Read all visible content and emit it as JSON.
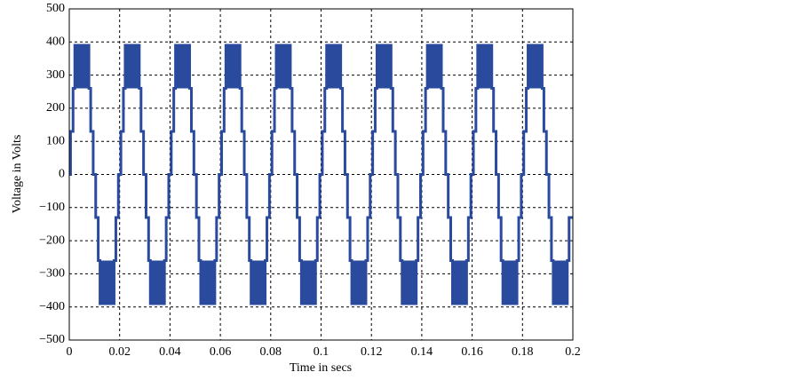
{
  "chart_data": {
    "type": "step-line",
    "x_label": "Time in secs",
    "y_label": "Voltage in Volts",
    "xlim": [
      0,
      0.2
    ],
    "ylim": [
      -500,
      500
    ],
    "xticks": [
      0,
      0.02,
      0.04,
      0.06,
      0.08,
      0.1,
      0.12,
      0.14,
      0.16,
      0.18,
      0.2
    ],
    "yticks": [
      {
        "value": -500,
        "label": "−500"
      },
      {
        "value": -400,
        "label": "−400"
      },
      {
        "value": -300,
        "label": "−300"
      },
      {
        "value": -200,
        "label": "−200"
      },
      {
        "value": -100,
        "label": "−100"
      },
      0,
      100,
      200,
      300,
      400,
      500
    ],
    "grid": true,
    "series": [
      {
        "color": "#2a4a9e",
        "x": [
          0,
          0.0005,
          0.0015,
          0.0022,
          0.0078,
          0.0085,
          0.0095,
          0.0105,
          0.0115,
          0.0122,
          0.0178,
          0.0185,
          0.0195,
          0.0205,
          0.0215,
          0.0222,
          0.0278,
          0.0285,
          0.0295,
          0.0305,
          0.0315,
          0.0322,
          0.0378,
          0.0385,
          0.0395,
          0.0405,
          0.0415,
          0.0422,
          0.0478,
          0.0485,
          0.0495,
          0.0505,
          0.0515,
          0.0522,
          0.0578,
          0.0585,
          0.0595,
          0.0605,
          0.0615,
          0.0622,
          0.0678,
          0.0685,
          0.0695,
          0.0705,
          0.0715,
          0.0722,
          0.0778,
          0.0785,
          0.0795,
          0.0805,
          0.0815,
          0.0822,
          0.0878,
          0.0885,
          0.0895,
          0.0905,
          0.0915,
          0.0922,
          0.0978,
          0.0985,
          0.0995,
          0.1005,
          0.1015,
          0.1022,
          0.1078,
          0.1085,
          0.1095,
          0.1105,
          0.1115,
          0.1122,
          0.1178,
          0.1185,
          0.1195,
          0.1205,
          0.1215,
          0.1222,
          0.1278,
          0.1285,
          0.1295,
          0.1305,
          0.1315,
          0.1322,
          0.1378,
          0.1385,
          0.1395,
          0.1405,
          0.1415,
          0.1422,
          0.1478,
          0.1485,
          0.1495,
          0.1505,
          0.1515,
          0.1522,
          0.1578,
          0.1585,
          0.1595,
          0.1605,
          0.1615,
          0.1622,
          0.1678,
          0.1685,
          0.1695,
          0.1705,
          0.1715,
          0.1722,
          0.1778,
          0.1785,
          0.1795,
          0.1805,
          0.1815,
          0.1822,
          0.1878,
          0.1885,
          0.1895,
          0.1905,
          0.1915,
          0.1922,
          0.1978,
          0.1985,
          0.1995
        ],
        "values": [
          0,
          130,
          260,
          390,
          260,
          130,
          0,
          -130,
          -260,
          -390,
          -260,
          -130,
          0,
          130,
          260,
          390,
          260,
          130,
          0,
          -130,
          -260,
          -390,
          -260,
          -130,
          0,
          130,
          260,
          390,
          260,
          130,
          0,
          -130,
          -260,
          -390,
          -260,
          -130,
          0,
          130,
          260,
          390,
          260,
          130,
          0,
          -130,
          -260,
          -390,
          -260,
          -130,
          0,
          130,
          260,
          390,
          260,
          130,
          0,
          -130,
          -260,
          -390,
          -260,
          -130,
          0,
          130,
          260,
          390,
          260,
          130,
          0,
          -130,
          -260,
          -390,
          -260,
          -130,
          0,
          130,
          260,
          390,
          260,
          130,
          0,
          -130,
          -260,
          -390,
          -260,
          -130,
          0,
          130,
          260,
          390,
          260,
          130,
          0,
          -130,
          -260,
          -390,
          -260,
          -130,
          0,
          130,
          260,
          390,
          260,
          130,
          0,
          -130,
          -260,
          -390,
          -260,
          -130,
          0,
          130,
          260,
          390,
          260,
          130,
          0,
          -130,
          -260,
          -390,
          -260,
          -130,
          -130
        ]
      }
    ]
  }
}
